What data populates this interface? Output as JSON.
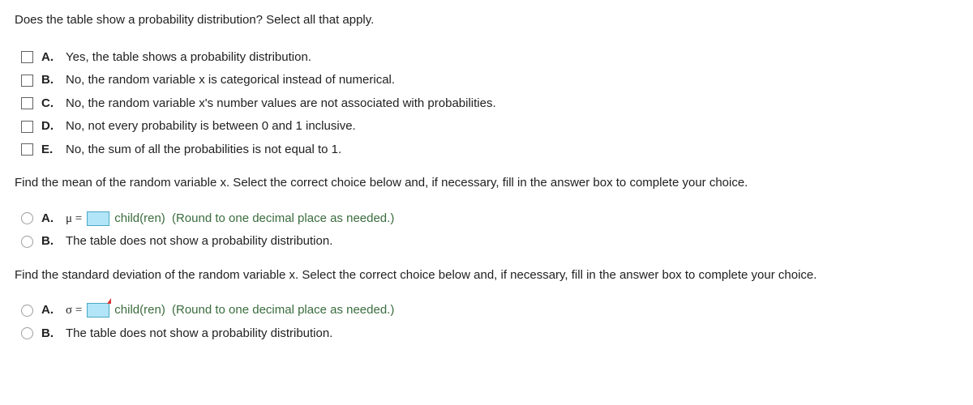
{
  "q1": {
    "prompt": "Does the table show a probability distribution? Select all that apply.",
    "options": [
      {
        "letter": "A.",
        "text": "Yes, the table shows a probability distribution."
      },
      {
        "letter": "B.",
        "text": "No, the random variable x is categorical instead of numerical."
      },
      {
        "letter": "C.",
        "text": "No, the random variable x's number values are not associated with probabilities."
      },
      {
        "letter": "D.",
        "text": "No, not every probability is between 0 and 1 inclusive."
      },
      {
        "letter": "E.",
        "text": "No, the sum of all the probabilities is not equal to 1."
      }
    ]
  },
  "q2": {
    "prompt": "Find the mean of the random variable x. Select the correct choice below and, if necessary, fill in the answer box to complete your choice.",
    "a_letter": "A.",
    "mu_label": "μ =",
    "a_unit": "child(ren)",
    "a_hint": "(Round to one decimal place as needed.)",
    "b_letter": "B.",
    "b_text": "The table does not show a probability distribution."
  },
  "q3": {
    "prompt": "Find the standard deviation of the random variable x. Select the correct choice below and, if necessary, fill in the answer box to complete your choice.",
    "a_letter": "A.",
    "sigma_label": "σ =",
    "a_unit": "child(ren)",
    "a_hint": "(Round to one decimal place as needed.)",
    "b_letter": "B.",
    "b_text": "The table does not show a probability distribution."
  },
  "colors": {
    "text": "#212121",
    "hint": "#3a6c3d",
    "input_bg": "#b2e5f7",
    "input_border": "#4aa8c6",
    "flag": "#d33"
  }
}
